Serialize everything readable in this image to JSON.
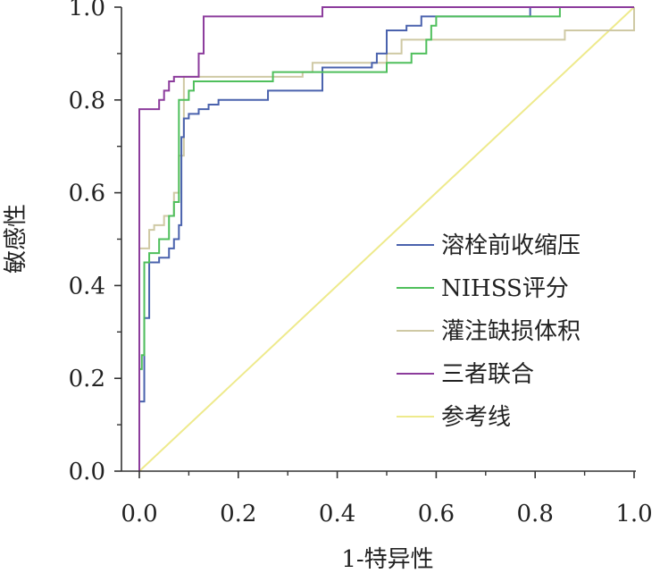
{
  "chart_data": {
    "type": "line",
    "title": "",
    "xlabel": "1-特异性",
    "ylabel": "敏感性",
    "xlim": [
      0,
      1
    ],
    "ylim": [
      0,
      1
    ],
    "xticks": [
      "0.0",
      "0.2",
      "0.4",
      "0.6",
      "0.8",
      "1.0"
    ],
    "yticks": [
      "0.0",
      "0.2",
      "0.4",
      "0.6",
      "0.8",
      "1.0"
    ],
    "legend_position": "center-right",
    "series": [
      {
        "name": "溶栓前收缩压",
        "color": "#4a62ad",
        "points": [
          [
            0,
            0
          ],
          [
            0,
            0.15
          ],
          [
            0.01,
            0.15
          ],
          [
            0.01,
            0.33
          ],
          [
            0.02,
            0.33
          ],
          [
            0.02,
            0.45
          ],
          [
            0.04,
            0.45
          ],
          [
            0.04,
            0.46
          ],
          [
            0.06,
            0.46
          ],
          [
            0.06,
            0.48
          ],
          [
            0.07,
            0.48
          ],
          [
            0.07,
            0.5
          ],
          [
            0.08,
            0.5
          ],
          [
            0.08,
            0.53
          ],
          [
            0.085,
            0.53
          ],
          [
            0.085,
            0.72
          ],
          [
            0.09,
            0.72
          ],
          [
            0.09,
            0.76
          ],
          [
            0.1,
            0.76
          ],
          [
            0.1,
            0.77
          ],
          [
            0.12,
            0.77
          ],
          [
            0.12,
            0.78
          ],
          [
            0.14,
            0.78
          ],
          [
            0.14,
            0.79
          ],
          [
            0.16,
            0.79
          ],
          [
            0.16,
            0.8
          ],
          [
            0.26,
            0.8
          ],
          [
            0.26,
            0.82
          ],
          [
            0.37,
            0.82
          ],
          [
            0.37,
            0.87
          ],
          [
            0.47,
            0.87
          ],
          [
            0.47,
            0.88
          ],
          [
            0.48,
            0.88
          ],
          [
            0.48,
            0.9
          ],
          [
            0.5,
            0.9
          ],
          [
            0.5,
            0.95
          ],
          [
            0.54,
            0.95
          ],
          [
            0.54,
            0.96
          ],
          [
            0.57,
            0.96
          ],
          [
            0.57,
            0.98
          ],
          [
            0.79,
            0.98
          ],
          [
            0.79,
            1
          ],
          [
            1,
            1
          ]
        ]
      },
      {
        "name": "NIHSS评分",
        "color": "#4fbf5c",
        "points": [
          [
            0,
            0
          ],
          [
            0,
            0.22
          ],
          [
            0.005,
            0.22
          ],
          [
            0.005,
            0.25
          ],
          [
            0.01,
            0.25
          ],
          [
            0.01,
            0.45
          ],
          [
            0.02,
            0.45
          ],
          [
            0.02,
            0.47
          ],
          [
            0.04,
            0.47
          ],
          [
            0.04,
            0.5
          ],
          [
            0.06,
            0.5
          ],
          [
            0.06,
            0.55
          ],
          [
            0.07,
            0.55
          ],
          [
            0.07,
            0.58
          ],
          [
            0.08,
            0.58
          ],
          [
            0.08,
            0.8
          ],
          [
            0.1,
            0.8
          ],
          [
            0.1,
            0.82
          ],
          [
            0.11,
            0.82
          ],
          [
            0.11,
            0.84
          ],
          [
            0.27,
            0.84
          ],
          [
            0.27,
            0.86
          ],
          [
            0.5,
            0.86
          ],
          [
            0.5,
            0.88
          ],
          [
            0.55,
            0.88
          ],
          [
            0.55,
            0.9
          ],
          [
            0.58,
            0.9
          ],
          [
            0.58,
            0.93
          ],
          [
            0.59,
            0.93
          ],
          [
            0.59,
            0.96
          ],
          [
            0.6,
            0.96
          ],
          [
            0.6,
            0.98
          ],
          [
            0.85,
            0.98
          ],
          [
            0.85,
            1
          ],
          [
            1,
            1
          ]
        ]
      },
      {
        "name": "灌注缺损体积",
        "color": "#cfc9a4",
        "points": [
          [
            0,
            0
          ],
          [
            0,
            0.48
          ],
          [
            0.02,
            0.48
          ],
          [
            0.02,
            0.52
          ],
          [
            0.03,
            0.52
          ],
          [
            0.03,
            0.53
          ],
          [
            0.05,
            0.53
          ],
          [
            0.05,
            0.55
          ],
          [
            0.07,
            0.55
          ],
          [
            0.07,
            0.6
          ],
          [
            0.08,
            0.6
          ],
          [
            0.08,
            0.68
          ],
          [
            0.09,
            0.68
          ],
          [
            0.09,
            0.85
          ],
          [
            0.33,
            0.85
          ],
          [
            0.33,
            0.86
          ],
          [
            0.35,
            0.86
          ],
          [
            0.35,
            0.88
          ],
          [
            0.5,
            0.88
          ],
          [
            0.5,
            0.9
          ],
          [
            0.53,
            0.9
          ],
          [
            0.53,
            0.93
          ],
          [
            0.86,
            0.93
          ],
          [
            0.86,
            0.95
          ],
          [
            1,
            0.95
          ],
          [
            1,
            1
          ]
        ]
      },
      {
        "name": "三者联合",
        "color": "#8c3c9c",
        "points": [
          [
            0,
            0
          ],
          [
            0,
            0.78
          ],
          [
            0.04,
            0.78
          ],
          [
            0.04,
            0.8
          ],
          [
            0.05,
            0.8
          ],
          [
            0.05,
            0.82
          ],
          [
            0.06,
            0.82
          ],
          [
            0.06,
            0.84
          ],
          [
            0.07,
            0.84
          ],
          [
            0.07,
            0.85
          ],
          [
            0.12,
            0.85
          ],
          [
            0.12,
            0.9
          ],
          [
            0.13,
            0.9
          ],
          [
            0.13,
            0.98
          ],
          [
            0.37,
            0.98
          ],
          [
            0.37,
            1
          ],
          [
            1,
            1
          ]
        ]
      },
      {
        "name": "参考线",
        "color": "#eeea8c",
        "points": [
          [
            0,
            0
          ],
          [
            1,
            1
          ]
        ]
      }
    ]
  }
}
